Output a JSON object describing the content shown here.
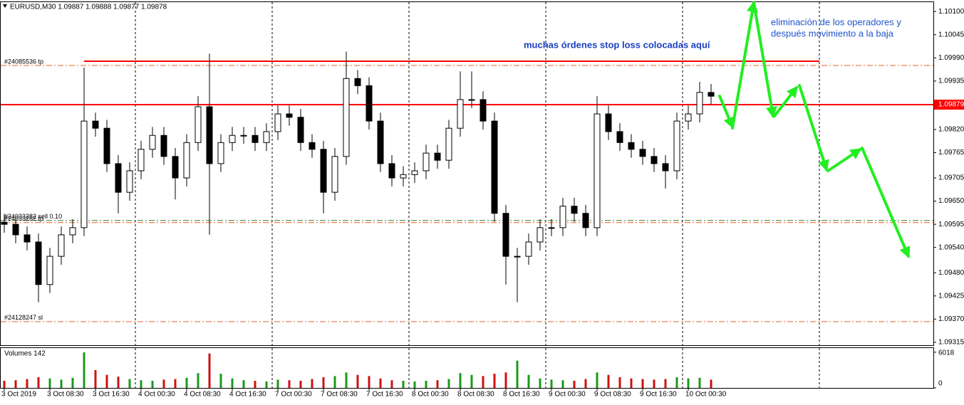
{
  "chart_data": {
    "type": "candlestick",
    "title": "EURUSD,M30 1.09887 1.09888 1.09877 1.09878",
    "categories": [
      "3 Oct 2019",
      null,
      null,
      null,
      "3 Oct 08:30",
      null,
      null,
      null,
      "3 Oct 16:30",
      null,
      null,
      null,
      "4 Oct 00:30",
      null,
      null,
      null,
      "4 Oct 08:30",
      null,
      null,
      null,
      "4 Oct 16:30",
      null,
      null,
      null,
      "7 Oct 00:30",
      null,
      null,
      null,
      "7 Oct 08:30",
      null,
      null,
      null,
      "7 Oct 16:30",
      null,
      null,
      null,
      "8 Oct 00:30",
      null,
      null,
      null,
      "8 Oct 08:30",
      null,
      null,
      null,
      "8 Oct 16:30",
      null,
      null,
      null,
      "9 Oct 00:30",
      null,
      null,
      null,
      "9 Oct 08:30",
      null,
      null,
      null,
      "9 Oct 16:30",
      null,
      null,
      null,
      "10 Oct 00:30",
      null,
      null
    ],
    "open": [
      1.096,
      1.09595,
      1.0957,
      1.09553,
      1.09452,
      1.09519,
      1.0957,
      1.09587,
      1.0984,
      1.09823,
      1.09739,
      1.09671,
      1.09722,
      1.09773,
      1.09806,
      1.09756,
      1.09705,
      1.09789,
      1.09874,
      1.09739,
      1.09789,
      1.09806,
      1.09806,
      1.09789,
      1.09815,
      1.09857,
      1.09849,
      1.09789,
      1.09773,
      1.09671,
      1.09756,
      1.09941,
      1.09924,
      1.0984,
      1.09739,
      1.09705,
      1.09713,
      1.09722,
      1.09764,
      1.09747,
      1.09823,
      1.09891,
      1.09891,
      1.0984,
      1.09621,
      1.09519,
      1.09519,
      1.09553,
      1.09587,
      1.09587,
      1.09638,
      1.09621,
      1.09587,
      1.09857,
      1.09815,
      1.09789,
      1.09773,
      1.09756,
      1.09739,
      1.09722,
      1.0984,
      1.09857,
      1.09908
    ],
    "high": [
      1.0962,
      1.09615,
      1.0959,
      1.09573,
      1.09539,
      1.0959,
      1.09607,
      1.09967,
      1.0986,
      1.09843,
      1.09759,
      1.09742,
      1.09793,
      1.09826,
      1.09826,
      1.09776,
      1.09809,
      1.09899,
      1.1,
      1.09809,
      1.09826,
      1.09826,
      1.09826,
      1.09835,
      1.09877,
      1.09877,
      1.09869,
      1.09809,
      1.09793,
      1.09776,
      1.10005,
      1.09961,
      1.09944,
      1.0986,
      1.09759,
      1.09733,
      1.09742,
      1.09784,
      1.09784,
      1.09843,
      1.09958,
      1.09958,
      1.09911,
      1.0986,
      1.09641,
      1.09539,
      1.09573,
      1.09607,
      1.09607,
      1.09658,
      1.09658,
      1.09641,
      1.09899,
      1.09877,
      1.09835,
      1.09809,
      1.09793,
      1.09776,
      1.09759,
      1.0986,
      1.09877,
      1.09933,
      1.09928
    ],
    "low": [
      1.09575,
      1.0955,
      1.09533,
      1.0941,
      1.09432,
      1.09499,
      1.0955,
      1.09567,
      1.09803,
      1.09719,
      1.09621,
      1.09651,
      1.09702,
      1.09753,
      1.09736,
      1.09654,
      1.09685,
      1.09769,
      1.0957,
      1.09719,
      1.09769,
      1.09786,
      1.09769,
      1.09769,
      1.09795,
      1.09829,
      1.09769,
      1.09753,
      1.09621,
      1.09651,
      1.09736,
      1.09904,
      1.0982,
      1.09719,
      1.09685,
      1.09685,
      1.09693,
      1.09702,
      1.09727,
      1.09727,
      1.09803,
      1.09871,
      1.0982,
      1.09601,
      1.09452,
      1.0941,
      1.09499,
      1.09533,
      1.09567,
      1.09567,
      1.09601,
      1.09567,
      1.09567,
      1.09795,
      1.09769,
      1.09753,
      1.09736,
      1.09719,
      1.0968,
      1.09702,
      1.0982,
      1.09837,
      1.09879
    ],
    "close": [
      1.09595,
      1.0957,
      1.09553,
      1.09452,
      1.09519,
      1.0957,
      1.09587,
      1.0984,
      1.09823,
      1.09739,
      1.09671,
      1.09722,
      1.09773,
      1.09806,
      1.09756,
      1.09705,
      1.09789,
      1.09874,
      1.09739,
      1.09789,
      1.09806,
      1.09806,
      1.09789,
      1.09815,
      1.09857,
      1.09849,
      1.09789,
      1.09773,
      1.09671,
      1.09756,
      1.09941,
      1.09924,
      1.0984,
      1.09739,
      1.09705,
      1.09713,
      1.09722,
      1.09764,
      1.09747,
      1.09823,
      1.09891,
      1.09891,
      1.0984,
      1.09621,
      1.09519,
      1.09519,
      1.09553,
      1.09587,
      1.09587,
      1.09638,
      1.09621,
      1.09587,
      1.09857,
      1.09815,
      1.09789,
      1.09773,
      1.09756,
      1.09739,
      1.09722,
      1.0984,
      1.09857,
      1.09908,
      1.09899
    ],
    "color": "#000000",
    "ylim": [
      1.09308,
      1.10124
    ],
    "yticks": [
      {
        "value": 1.101,
        "label": "1.10100"
      },
      1.10045,
      {
        "value": 1.0999,
        "label": "1.09990"
      },
      1.09935,
      {
        "value": 1.0982,
        "label": "1.09820"
      },
      1.09765,
      1.09705,
      {
        "value": 1.0965,
        "label": "1.09650"
      },
      1.09595,
      {
        "value": 1.0954,
        "label": "1.09540"
      },
      {
        "value": 1.0948,
        "label": "1.09480"
      },
      1.09425,
      {
        "value": 1.0937,
        "label": "1.09370"
      },
      1.09315
    ],
    "current_price": 1.09879,
    "current_price_color": "#ff0000",
    "levels": [
      {
        "value": 1.09982,
        "color": "#ff0000",
        "style": "solid"
      },
      {
        "value": 1.09879,
        "color": "#ff0000",
        "style": "solid"
      },
      {
        "value": 1.09972,
        "label": "#24085536 tp",
        "color": "#e8602a",
        "style": "dashdot"
      },
      {
        "value": 1.09604,
        "label": "#24033282 sell 0.10",
        "color": "#3a7d2c",
        "style": "dashdot"
      },
      {
        "value": 1.09599,
        "label": "#24033282 tp",
        "color": "#e8602a",
        "style": "dashdot"
      },
      {
        "value": 1.09364,
        "label": "#24128247 sl",
        "color": "#e8602a",
        "style": "dashdot"
      }
    ],
    "annotations": [
      "muchas órdenes stop loss colocadas aquí",
      "eliminación de los operadores y",
      "después movimiento a la baja"
    ],
    "volume": {
      "title": "Volumes 142",
      "values": [
        1200,
        1300,
        1500,
        1800,
        1600,
        1400,
        1700,
        6000,
        3000,
        2200,
        1900,
        1500,
        1300,
        1200,
        1400,
        1500,
        1700,
        2500,
        5800,
        2400,
        1600,
        1300,
        1200,
        1100,
        1400,
        1300,
        1200,
        1500,
        1800,
        2000,
        2600,
        2200,
        2000,
        1600,
        1300,
        1200,
        1100,
        1200,
        1300,
        1500,
        2500,
        2200,
        2000,
        2400,
        2600,
        4600,
        2200,
        1600,
        1400,
        1300,
        1200,
        1500,
        2600,
        2200,
        1800,
        1600,
        1500,
        1400,
        1500,
        1800,
        1600,
        1700,
        1400
      ],
      "ylim": [
        0,
        6600
      ],
      "yticks": [
        0,
        6018
      ],
      "up_color": "#1a9a1a",
      "down_color": "#d01010"
    }
  }
}
